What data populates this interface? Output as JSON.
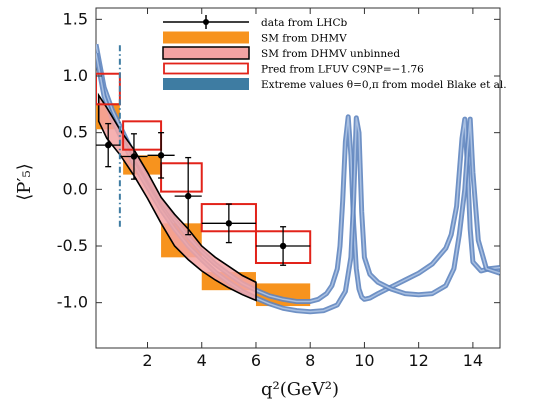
{
  "chart_data": {
    "type": "line",
    "xlabel": "q²(GeV²)",
    "ylabel": "⟨P′₅⟩",
    "xlim": [
      0.1,
      15.0
    ],
    "ylim": [
      -1.4,
      1.6
    ],
    "xticks": [
      2,
      4,
      6,
      8,
      10,
      12,
      14
    ],
    "yticks": [
      -1.0,
      -0.5,
      0.0,
      0.5,
      1.0,
      1.5
    ],
    "xtick_labels": [
      "2",
      "4",
      "6",
      "8",
      "10",
      "12",
      "14"
    ],
    "ytick_labels": [
      "-1.0",
      "-0.5",
      "0.0",
      "0.5",
      "1.0",
      "1.5"
    ],
    "legend": {
      "position": "top-center",
      "entries": [
        {
          "label": "data from LHCb",
          "kind": "errorbar",
          "color": "#000000"
        },
        {
          "label": "SM from DHMV",
          "kind": "fill",
          "color": "#f7931e"
        },
        {
          "label": "SM from DHMV unbinned",
          "kind": "fill-outline",
          "color": "#f4a3a3",
          "edge": "#000000"
        },
        {
          "label": "Pred from LFUV C9NP=−1.76",
          "kind": "outline",
          "color": "#e2231a"
        },
        {
          "label": "Extreme values θ=0,π from model Blake et al.",
          "kind": "fill",
          "color": "#3e7ca2"
        }
      ]
    },
    "series": [
      {
        "name": "data from LHCb",
        "kind": "errorbar",
        "color": "#000000",
        "points": [
          {
            "x": 0.55,
            "xerr": 0.45,
            "y": 0.39,
            "yerr": 0.19
          },
          {
            "x": 1.5,
            "xerr": 0.5,
            "y": 0.29,
            "yerr": 0.2
          },
          {
            "x": 2.5,
            "xerr": 0.5,
            "y": 0.3,
            "yerr": 0.2
          },
          {
            "x": 3.5,
            "xerr": 0.5,
            "y": -0.06,
            "yerr": 0.34
          },
          {
            "x": 5.0,
            "xerr": 1.0,
            "y": -0.3,
            "yerr": 0.17
          },
          {
            "x": 7.0,
            "xerr": 1.0,
            "y": -0.5,
            "yerr": 0.17
          }
        ]
      },
      {
        "name": "SM from DHMV",
        "kind": "bins",
        "color": "#f7931e",
        "bins": [
          {
            "x0": 0.1,
            "x1": 0.98,
            "y0": 0.53,
            "y1": 0.76
          },
          {
            "x0": 1.1,
            "x1": 2.5,
            "y0": 0.13,
            "y1": 0.3
          },
          {
            "x0": 2.5,
            "x1": 4.0,
            "y0": -0.6,
            "y1": -0.3
          },
          {
            "x0": 4.0,
            "x1": 6.0,
            "y0": -0.89,
            "y1": -0.73
          },
          {
            "x0": 6.0,
            "x1": 8.0,
            "y0": -1.03,
            "y1": -0.83
          }
        ]
      },
      {
        "name": "SM from DHMV unbinned",
        "kind": "band",
        "color": "#f4a3a3",
        "edge": "#000000",
        "x": [
          0.2,
          0.5,
          1.0,
          1.5,
          2.0,
          2.5,
          3.0,
          3.5,
          4.0,
          4.5,
          5.0,
          5.5,
          6.0
        ],
        "upper": [
          0.83,
          0.72,
          0.52,
          0.35,
          0.15,
          -0.07,
          -0.22,
          -0.35,
          -0.5,
          -0.6,
          -0.68,
          -0.76,
          -0.82
        ],
        "lower": [
          0.6,
          0.45,
          0.3,
          0.12,
          -0.08,
          -0.3,
          -0.5,
          -0.62,
          -0.72,
          -0.8,
          -0.87,
          -0.93,
          -0.98
        ]
      },
      {
        "name": "Pred from LFUV C9NP=−1.76",
        "kind": "bins-outline",
        "color": "#e2231a",
        "bins": [
          {
            "x0": 0.1,
            "x1": 0.98,
            "y0": 0.75,
            "y1": 1.02
          },
          {
            "x0": 1.1,
            "x1": 2.5,
            "y0": 0.35,
            "y1": 0.6
          },
          {
            "x0": 2.5,
            "x1": 4.0,
            "y0": -0.02,
            "y1": 0.23
          },
          {
            "x0": 4.0,
            "x1": 6.0,
            "y0": -0.37,
            "y1": -0.13
          },
          {
            "x0": 6.0,
            "x1": 8.0,
            "y0": -0.65,
            "y1": -0.37
          }
        ]
      },
      {
        "name": "Extreme values θ=0,π from model Blake et al.",
        "kind": "curves",
        "color": "#5f85bf",
        "curves": [
          {
            "x": [
              0.1,
              0.4,
              0.7,
              1.0,
              1.5,
              2.0,
              2.5,
              3.0,
              3.5,
              4.0,
              4.5,
              5.0,
              5.5,
              6.0,
              6.5,
              7.0,
              7.5,
              8.0,
              8.3,
              8.6,
              8.8,
              9.0,
              9.1,
              9.2,
              9.3,
              9.4,
              9.5,
              9.6,
              9.7,
              9.8,
              9.9,
              10.0,
              10.2,
              10.5,
              11.0,
              11.5,
              12.0,
              12.5,
              13.0,
              13.2,
              13.4,
              13.5,
              13.6,
              13.7,
              13.8,
              13.9,
              14.0,
              14.3,
              14.6,
              15.0
            ],
            "y": [
              1.28,
              0.9,
              0.7,
              0.55,
              0.3,
              0.1,
              -0.1,
              -0.27,
              -0.42,
              -0.55,
              -0.66,
              -0.75,
              -0.83,
              -0.89,
              -0.94,
              -0.97,
              -0.99,
              -0.99,
              -0.97,
              -0.92,
              -0.85,
              -0.7,
              -0.5,
              -0.1,
              0.42,
              0.64,
              0.3,
              -0.3,
              -0.7,
              -0.88,
              -0.95,
              -0.97,
              -0.96,
              -0.92,
              -0.86,
              -0.8,
              -0.74,
              -0.66,
              -0.52,
              -0.4,
              -0.15,
              0.15,
              0.45,
              0.62,
              0.2,
              -0.35,
              -0.64,
              -0.72,
              -0.7,
              -0.69
            ]
          },
          {
            "x": [
              0.1,
              0.4,
              0.7,
              1.0,
              1.5,
              2.0,
              2.5,
              3.0,
              3.5,
              4.0,
              4.5,
              5.0,
              5.5,
              6.0,
              6.5,
              7.0,
              7.5,
              8.0,
              8.5,
              9.0,
              9.3,
              9.5,
              9.6,
              9.7,
              9.8,
              9.9,
              10.0,
              10.2,
              10.5,
              11.0,
              11.5,
              12.0,
              12.5,
              13.0,
              13.3,
              13.5,
              13.7,
              13.8,
              13.9,
              14.0,
              14.2,
              14.5,
              15.0
            ],
            "y": [
              1.2,
              0.82,
              0.62,
              0.47,
              0.22,
              0.02,
              -0.18,
              -0.35,
              -0.5,
              -0.62,
              -0.73,
              -0.82,
              -0.9,
              -0.96,
              -1.01,
              -1.05,
              -1.07,
              -1.08,
              -1.07,
              -1.02,
              -0.9,
              -0.6,
              -0.1,
              0.63,
              0.5,
              -0.2,
              -0.6,
              -0.75,
              -0.82,
              -0.88,
              -0.92,
              -0.93,
              -0.92,
              -0.85,
              -0.7,
              -0.4,
              0.0,
              0.35,
              0.62,
              0.15,
              -0.45,
              -0.7,
              -0.74
            ]
          }
        ]
      },
      {
        "name": "vertical-dash",
        "kind": "dashdot",
        "color": "#3e7ca2",
        "x": 0.98,
        "y0": -0.33,
        "y1": 1.28
      }
    ]
  }
}
